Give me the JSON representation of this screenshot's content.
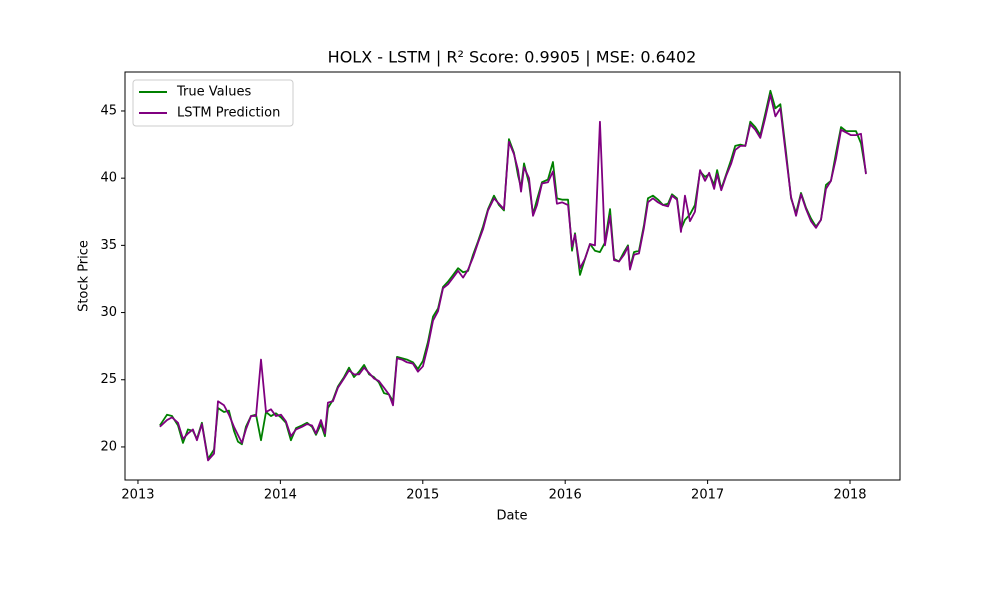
{
  "chart_data": {
    "type": "line",
    "title": "HOLX - LSTM | R² Score: 0.9905 | MSE: 0.6402",
    "xlabel": "Date",
    "ylabel": "Stock Price",
    "x": [
      2013.154,
      2013.204,
      2013.239,
      2013.281,
      2013.316,
      2013.351,
      2013.386,
      2013.414,
      2013.449,
      2013.492,
      2013.534,
      2013.562,
      2013.604,
      2013.639,
      2013.674,
      2013.702,
      2013.73,
      2013.758,
      2013.794,
      2013.829,
      2013.864,
      2013.899,
      2013.934,
      2013.969,
      2014.004,
      2014.039,
      2014.074,
      2014.11,
      2014.152,
      2014.187,
      2014.222,
      2014.25,
      2014.285,
      2014.313,
      2014.334,
      2014.369,
      2014.404,
      2014.447,
      2014.482,
      2014.517,
      2014.553,
      2014.588,
      2014.623,
      2014.657,
      2014.692,
      2014.728,
      2014.763,
      2014.791,
      2014.819,
      2014.854,
      2014.889,
      2014.931,
      2014.966,
      2015.001,
      2015.036,
      2015.072,
      2015.107,
      2015.142,
      2015.177,
      2015.213,
      2015.248,
      2015.283,
      2015.318,
      2015.353,
      2015.388,
      2015.423,
      2015.458,
      2015.5,
      2015.535,
      2015.57,
      2015.605,
      2015.64,
      2015.669,
      2015.69,
      2015.711,
      2015.746,
      2015.774,
      2015.802,
      2015.837,
      2015.879,
      2015.914,
      2015.942,
      2015.978,
      2016.02,
      2016.048,
      2016.069,
      2016.104,
      2016.139,
      2016.174,
      2016.209,
      2016.244,
      2016.279,
      2016.315,
      2016.343,
      2016.378,
      2016.413,
      2016.441,
      2016.455,
      2016.483,
      2016.518,
      2016.553,
      2016.581,
      2016.616,
      2016.652,
      2016.687,
      2016.722,
      2016.75,
      2016.785,
      2016.813,
      2016.841,
      2016.876,
      2016.911,
      2016.947,
      2016.982,
      2017.011,
      2017.046,
      2017.067,
      2017.096,
      2017.131,
      2017.166,
      2017.194,
      2017.23,
      2017.265,
      2017.3,
      2017.335,
      2017.37,
      2017.405,
      2017.441,
      2017.476,
      2017.511,
      2017.551,
      2017.586,
      2017.621,
      2017.656,
      2017.691,
      2017.726,
      2017.761,
      2017.796,
      2017.831,
      2017.866,
      2017.902,
      2017.937,
      2017.972,
      2018.007,
      2018.042,
      2018.077,
      2018.112
    ],
    "series": [
      {
        "name": "True Values",
        "color": "#008000",
        "values": [
          21.6,
          22.4,
          22.3,
          21.6,
          20.3,
          21.3,
          21.2,
          20.6,
          21.8,
          19.1,
          19.8,
          22.9,
          22.6,
          22.7,
          21.2,
          20.4,
          20.2,
          21.5,
          22.3,
          22.4,
          20.5,
          22.6,
          22.3,
          22.5,
          22.2,
          21.8,
          20.5,
          21.4,
          21.6,
          21.8,
          21.5,
          20.9,
          21.7,
          20.8,
          22.9,
          23.5,
          24.5,
          25.2,
          25.9,
          25.2,
          25.6,
          26.1,
          25.4,
          25.2,
          24.8,
          24.0,
          23.9,
          23.4,
          26.7,
          26.6,
          26.5,
          26.3,
          25.8,
          26.4,
          27.8,
          29.7,
          30.3,
          31.9,
          32.3,
          32.8,
          33.3,
          33.0,
          33.1,
          34.3,
          35.3,
          36.4,
          37.7,
          38.7,
          38.0,
          37.6,
          42.9,
          41.9,
          40.2,
          39.3,
          41.1,
          39.6,
          37.3,
          38.4,
          39.7,
          39.9,
          41.2,
          38.5,
          38.4,
          38.4,
          34.6,
          35.9,
          32.8,
          34.0,
          35.1,
          34.6,
          34.5,
          35.2,
          37.7,
          34.0,
          33.8,
          34.5,
          35.0,
          33.3,
          34.5,
          34.6,
          36.5,
          38.5,
          38.7,
          38.4,
          38.0,
          38.1,
          38.8,
          38.5,
          36.2,
          36.9,
          37.3,
          38.0,
          40.5,
          40.1,
          40.3,
          39.5,
          40.6,
          39.2,
          40.3,
          41.4,
          42.4,
          42.5,
          42.4,
          44.2,
          43.8,
          43.2,
          44.8,
          46.5,
          45.2,
          45.5,
          41.9,
          38.5,
          37.4,
          38.9,
          37.8,
          37.0,
          36.4,
          36.9,
          39.5,
          39.8,
          41.9,
          43.8,
          43.5,
          43.5,
          43.5,
          42.6,
          40.4
        ]
      },
      {
        "name": "LSTM Prediction",
        "color": "#800080",
        "values": [
          21.5,
          22.0,
          22.2,
          21.8,
          20.6,
          21.0,
          21.3,
          20.5,
          21.7,
          19.0,
          19.5,
          23.4,
          23.1,
          22.4,
          21.5,
          20.9,
          20.3,
          21.3,
          22.3,
          22.3,
          26.5,
          22.6,
          22.8,
          22.3,
          22.4,
          21.9,
          20.8,
          21.3,
          21.5,
          21.7,
          21.6,
          21.0,
          22.0,
          21.0,
          23.3,
          23.4,
          24.4,
          25.1,
          25.7,
          25.4,
          25.4,
          25.9,
          25.5,
          25.1,
          24.9,
          24.4,
          23.9,
          23.1,
          26.6,
          26.5,
          26.3,
          26.2,
          25.6,
          26.0,
          27.5,
          29.4,
          30.1,
          31.8,
          32.1,
          32.6,
          33.1,
          32.6,
          33.2,
          34.1,
          35.2,
          36.2,
          37.6,
          38.5,
          38.1,
          37.7,
          42.7,
          41.8,
          40.6,
          39.0,
          40.8,
          40.0,
          37.2,
          38.0,
          39.6,
          39.7,
          40.5,
          38.1,
          38.2,
          38.0,
          34.9,
          35.8,
          33.3,
          34.0,
          35.1,
          35.0,
          44.2,
          35.0,
          37.2,
          33.9,
          33.8,
          34.3,
          34.9,
          33.2,
          34.3,
          34.4,
          36.3,
          38.2,
          38.5,
          38.2,
          38.0,
          37.9,
          38.7,
          38.4,
          36.0,
          38.7,
          36.8,
          37.5,
          40.6,
          39.8,
          40.4,
          39.2,
          40.3,
          39.1,
          40.2,
          41.1,
          42.1,
          42.4,
          42.4,
          44.0,
          43.6,
          43.0,
          44.5,
          46.2,
          44.6,
          45.2,
          41.6,
          38.6,
          37.2,
          38.8,
          37.7,
          36.8,
          36.3,
          36.9,
          39.2,
          39.8,
          41.5,
          43.6,
          43.4,
          43.2,
          43.2,
          43.3,
          40.3
        ]
      }
    ],
    "xlim": [
      2012.909,
      2018.351
    ],
    "xticks": [
      2013,
      2014,
      2015,
      2016,
      2017,
      2018
    ],
    "ylim": [
      17.54,
      47.9
    ],
    "yticks": [
      20,
      25,
      30,
      35,
      40,
      45
    ],
    "legend": "upper left",
    "grid": false
  }
}
